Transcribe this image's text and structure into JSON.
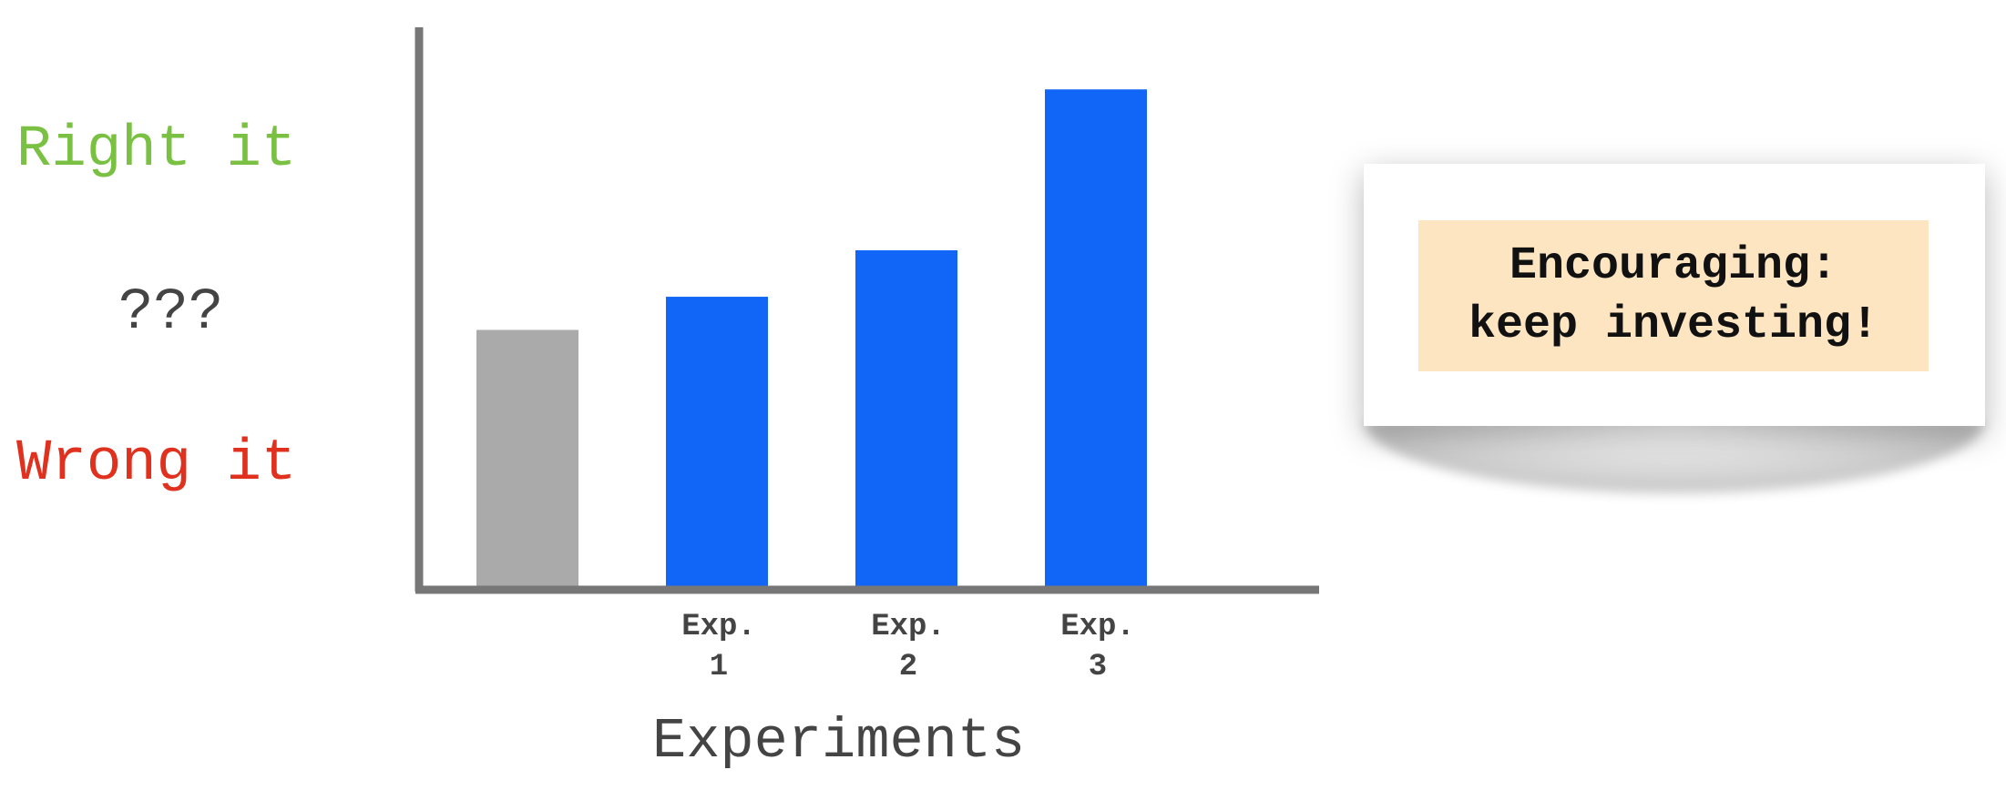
{
  "chart_data": {
    "type": "bar",
    "categories": [
      "",
      "Exp.\n1",
      "Exp.\n2",
      "Exp.\n3"
    ],
    "values": [
      1.55,
      1.75,
      2.03,
      3.0
    ],
    "bar_colors": [
      "#aaaaaa",
      "#1166f8",
      "#1166f8",
      "#1166f8"
    ],
    "xlabel": "Experiments",
    "ylabel": "",
    "ylim": [
      0,
      3.1
    ],
    "grid": false,
    "reference_lines": [
      {
        "label": "Right it",
        "value": 2.75,
        "color": "#7ac143"
      },
      {
        "label": "Wrong it",
        "value": 0.75,
        "color": "#e0301e"
      }
    ],
    "middle_label": "???",
    "axis_color": "#777777"
  },
  "callout": {
    "line1": "Encouraging:",
    "line2": "keep investing!"
  }
}
